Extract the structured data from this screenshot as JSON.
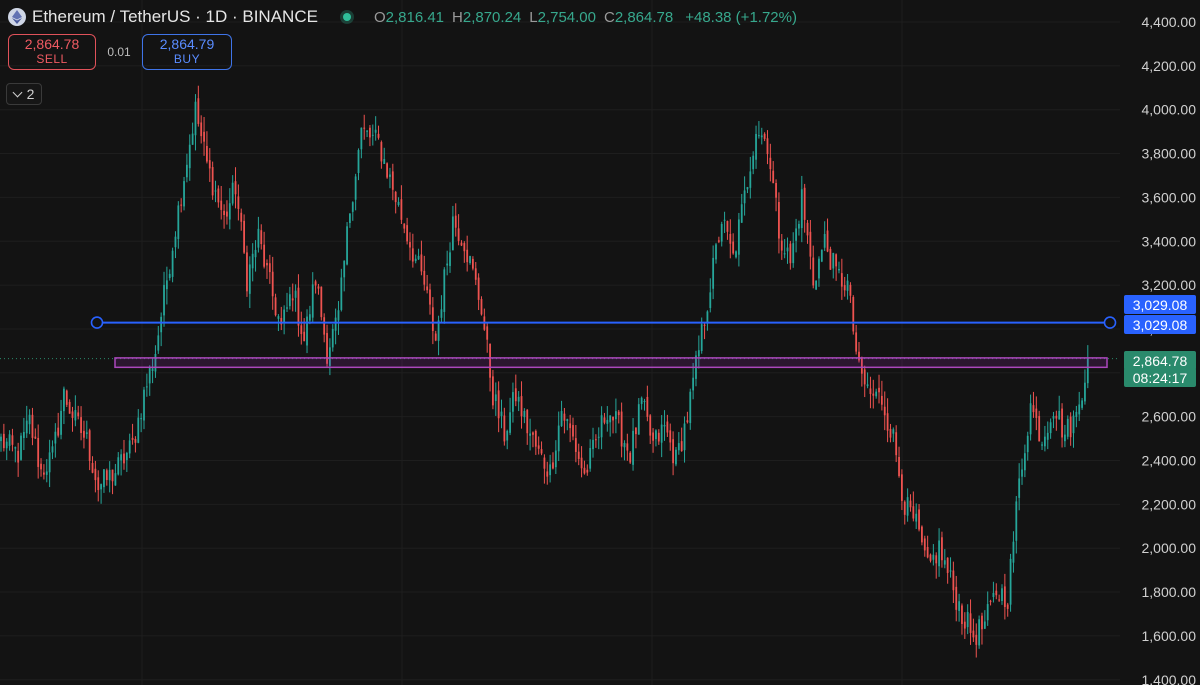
{
  "header": {
    "symbol_title": "Ethereum / TetherUS · 1D · BINANCE",
    "open_label": "O",
    "open": "2,816.41",
    "high_label": "H",
    "high": "2,870.24",
    "low_label": "L",
    "low": "2,754.00",
    "close_label": "C",
    "close": "2,864.78",
    "change": "+48.38 (+1.72%)"
  },
  "trade": {
    "sell_price": "2,864.78",
    "sell_label": "SELL",
    "spread": "0.01",
    "buy_price": "2,864.79",
    "buy_label": "BUY"
  },
  "indicators_toggle": {
    "count": "2"
  },
  "price_axis": {
    "labels": [
      "4,400.00",
      "4,200.00",
      "4,000.00",
      "3,800.00",
      "3,600.00",
      "3,400.00",
      "3,200.00",
      "3,000.00",
      "2,800.00",
      "2,600.00",
      "2,400.00",
      "2,200.00",
      "2,000.00",
      "1,800.00",
      "1,600.00",
      "1,400.00"
    ]
  },
  "tags": {
    "line_price_1": "3,029.08",
    "line_price_2": "3,029.08",
    "last_price": "2,864.78",
    "countdown": "08:24:17"
  },
  "colors": {
    "up": "#26a69a",
    "down": "#ef5350",
    "hline": "#2962ff",
    "zone": "#9c27b0",
    "background": "#131313"
  },
  "chart_data": {
    "type": "candlestick",
    "title": "Ethereum / TetherUS · 1D · BINANCE",
    "ylim": [
      1400,
      4450
    ],
    "horizontal_line": 3029.08,
    "zone": [
      2825,
      2868
    ],
    "last_price": 2864.78,
    "path_waypoints": [
      [
        0,
        2490
      ],
      [
        6,
        2430
      ],
      [
        10,
        2580
      ],
      [
        14,
        2350
      ],
      [
        18,
        2420
      ],
      [
        22,
        2700
      ],
      [
        26,
        2580
      ],
      [
        30,
        2490
      ],
      [
        34,
        2280
      ],
      [
        40,
        2350
      ],
      [
        46,
        2470
      ],
      [
        50,
        2700
      ],
      [
        54,
        2900
      ],
      [
        58,
        3230
      ],
      [
        64,
        3700
      ],
      [
        68,
        4000
      ],
      [
        72,
        3750
      ],
      [
        78,
        3500
      ],
      [
        82,
        3650
      ],
      [
        86,
        3230
      ],
      [
        90,
        3420
      ],
      [
        94,
        3200
      ],
      [
        98,
        3000
      ],
      [
        102,
        3180
      ],
      [
        106,
        2950
      ],
      [
        110,
        3230
      ],
      [
        114,
        2900
      ],
      [
        118,
        3050
      ],
      [
        122,
        3550
      ],
      [
        126,
        3900
      ],
      [
        132,
        3850
      ],
      [
        138,
        3600
      ],
      [
        142,
        3430
      ],
      [
        148,
        3200
      ],
      [
        152,
        2950
      ],
      [
        158,
        3500
      ],
      [
        162,
        3400
      ],
      [
        168,
        3100
      ],
      [
        172,
        2700
      ],
      [
        176,
        2520
      ],
      [
        180,
        2700
      ],
      [
        184,
        2550
      ],
      [
        188,
        2430
      ],
      [
        192,
        2350
      ],
      [
        196,
        2630
      ],
      [
        200,
        2500
      ],
      [
        204,
        2330
      ],
      [
        208,
        2480
      ],
      [
        212,
        2640
      ],
      [
        216,
        2550
      ],
      [
        220,
        2430
      ],
      [
        224,
        2660
      ],
      [
        228,
        2470
      ],
      [
        232,
        2550
      ],
      [
        236,
        2400
      ],
      [
        240,
        2600
      ],
      [
        244,
        2900
      ],
      [
        248,
        3200
      ],
      [
        252,
        3500
      ],
      [
        256,
        3320
      ],
      [
        260,
        3600
      ],
      [
        264,
        3920
      ],
      [
        268,
        3850
      ],
      [
        272,
        3450
      ],
      [
        276,
        3300
      ],
      [
        280,
        3600
      ],
      [
        284,
        3220
      ],
      [
        288,
        3400
      ],
      [
        292,
        3250
      ],
      [
        296,
        3200
      ],
      [
        300,
        2800
      ],
      [
        304,
        2700
      ],
      [
        308,
        2680
      ],
      [
        312,
        2500
      ],
      [
        316,
        2200
      ],
      [
        320,
        2100
      ],
      [
        324,
        1900
      ],
      [
        328,
        2000
      ],
      [
        332,
        1850
      ],
      [
        336,
        1700
      ],
      [
        340,
        1600
      ],
      [
        344,
        1650
      ],
      [
        348,
        1800
      ],
      [
        352,
        1780
      ],
      [
        356,
        2300
      ],
      [
        360,
        2650
      ],
      [
        364,
        2500
      ],
      [
        368,
        2650
      ],
      [
        372,
        2520
      ],
      [
        376,
        2600
      ],
      [
        380,
        2864.78
      ]
    ]
  }
}
